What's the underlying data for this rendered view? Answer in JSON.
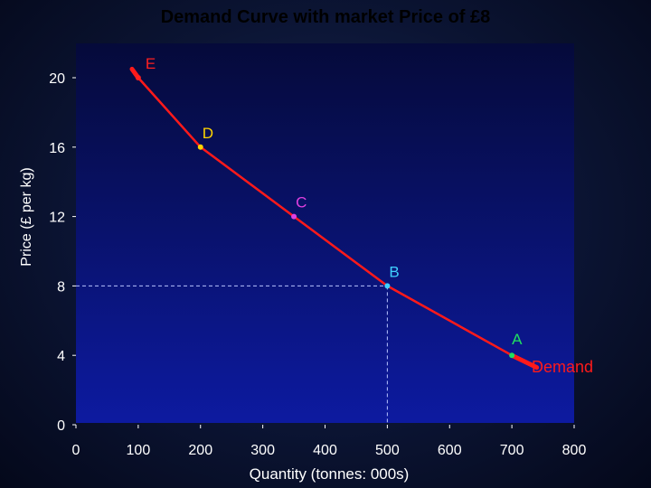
{
  "chart_data": {
    "type": "line",
    "title": "Demand Curve with market Price of £8",
    "xlabel": "Quantity (tonnes: 000s)",
    "ylabel": "Price (£ per kg)",
    "xlim": [
      0,
      800
    ],
    "ylim": [
      0,
      22
    ],
    "x_ticks": [
      0,
      100,
      200,
      300,
      400,
      500,
      600,
      700,
      800
    ],
    "y_ticks": [
      0,
      4,
      8,
      12,
      16,
      20
    ],
    "grid": false,
    "series": [
      {
        "name": "Demand",
        "color": "#ff1a1a",
        "x": [
          90,
          100,
          200,
          350,
          500,
          700,
          740
        ],
        "y": [
          20.5,
          20,
          16,
          12,
          8,
          4,
          3.3
        ]
      }
    ],
    "points": [
      {
        "label": "E",
        "x": 100,
        "y": 20,
        "color": "#ff2020",
        "label_color": "#ff2020"
      },
      {
        "label": "D",
        "x": 200,
        "y": 16,
        "color": "#ffd400",
        "label_color": "#ffd400"
      },
      {
        "label": "C",
        "x": 350,
        "y": 12,
        "color": "#e040e0",
        "label_color": "#e040e0"
      },
      {
        "label": "B",
        "x": 500,
        "y": 8,
        "color": "#40d0ff",
        "label_color": "#40d0ff"
      },
      {
        "label": "A",
        "x": 700,
        "y": 4,
        "color": "#20e060",
        "label_color": "#20e060"
      }
    ],
    "series_label": {
      "text": "Demand",
      "color": "#ff1a1a"
    },
    "reference_lines": {
      "price": 8,
      "quantity": 500,
      "style": "dashed"
    },
    "colors": {
      "plot_background": "#0a1670",
      "axis_text": "#ffffff",
      "title_text": "#000000"
    }
  }
}
